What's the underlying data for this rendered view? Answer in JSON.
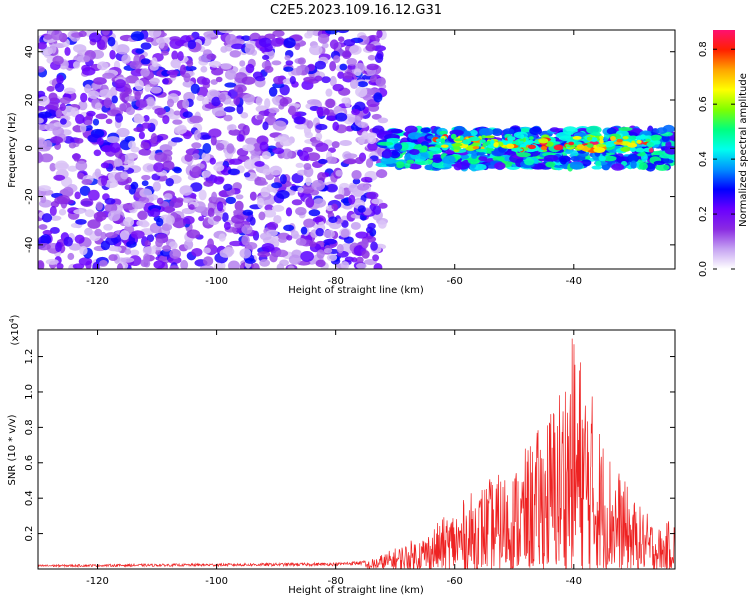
{
  "title": "C2E5.2023.109.16.12.G31",
  "chart_data": [
    {
      "type": "heatmap",
      "xlabel": "Height of straight line (km)",
      "ylabel": "Frequency (Hz)",
      "xlim": [
        -130,
        -23
      ],
      "ylim": [
        -50,
        49
      ],
      "xticks": [
        -120,
        -100,
        -80,
        -60,
        -40
      ],
      "yticks": [
        -40,
        -20,
        0,
        20,
        40
      ],
      "grid": false,
      "colorbar": {
        "label": "Normalized spectral amplitude",
        "range": [
          0.0,
          0.87
        ],
        "ticks": [
          0.0,
          0.2,
          0.4,
          0.6,
          0.8
        ],
        "colormap": [
          "#ffffff",
          "#c6a3f2",
          "#8a2be2",
          "#6a00ff",
          "#0000ff",
          "#0090ff",
          "#00ffee",
          "#00ff7f",
          "#7fff00",
          "#ffff00",
          "#ffa500",
          "#ff2000",
          "#ff1070"
        ]
      },
      "regions": [
        {
          "x_range": [
            -130,
            -72
          ],
          "freq_range": [
            -50,
            49
          ],
          "amplitude": "0.0-0.2 (noise)"
        },
        {
          "x_range": [
            -72,
            -23
          ],
          "freq_range": [
            -12,
            10
          ],
          "amplitude": "0.3-0.87 (signal band near 0 Hz)"
        }
      ]
    },
    {
      "type": "line",
      "xlabel": "Height of straight line (km)",
      "ylabel": "SNR (10 * v/v)",
      "y_scale_label": "(x10",
      "y_scale_exp": "4",
      "y_scale_close": ")",
      "xlim": [
        -130,
        -23
      ],
      "ylim": [
        0,
        1.35
      ],
      "xticks": [
        -120,
        -100,
        -80,
        -60,
        -40
      ],
      "yticks": [
        0.2,
        0.4,
        0.6,
        0.8,
        1.0,
        1.2
      ],
      "line_color": "#ee2222",
      "grid": false,
      "envelope": {
        "x": [
          -130,
          -80,
          -75,
          -70,
          -65,
          -60,
          -55,
          -50,
          -45,
          -42,
          -40,
          -38,
          -35,
          -30,
          -25,
          -23
        ],
        "y": [
          0.02,
          0.03,
          0.04,
          0.12,
          0.2,
          0.35,
          0.5,
          0.58,
          0.85,
          1.1,
          1.35,
          1.15,
          0.75,
          0.4,
          0.22,
          0.35
        ]
      }
    }
  ]
}
